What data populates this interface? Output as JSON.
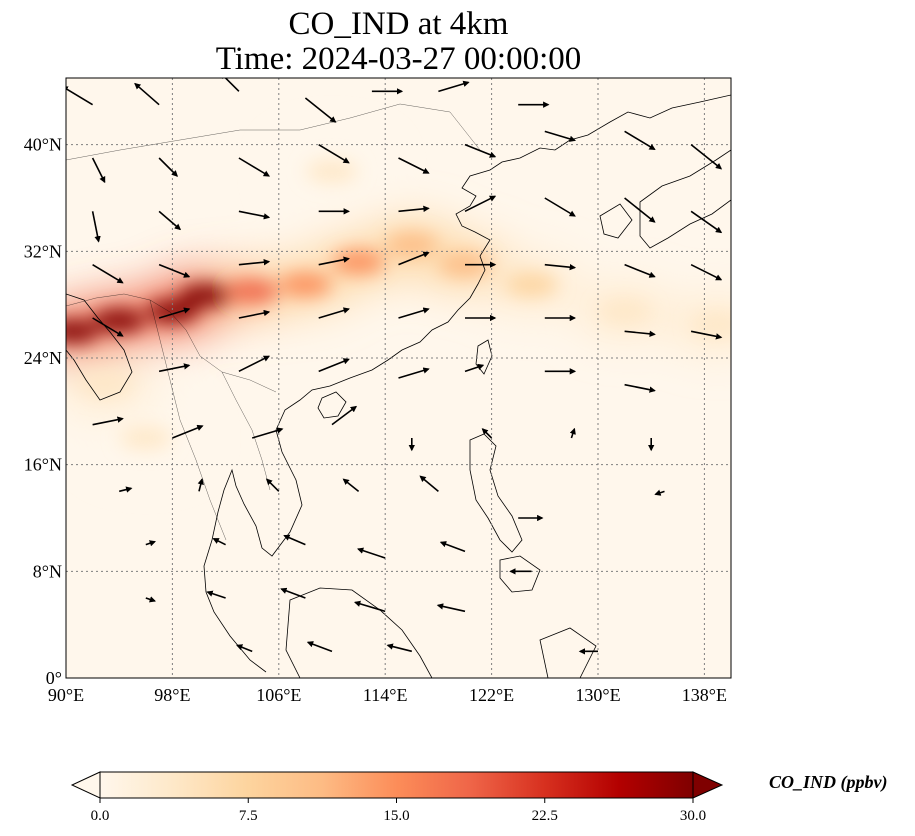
{
  "title": {
    "line1": "CO_IND at 4km",
    "line2": "Time: 2024-03-27 00:00:00"
  },
  "map": {
    "projection": "PlateCarree",
    "lon_range": [
      90,
      140
    ],
    "lat_range": [
      0,
      45
    ],
    "gridlines": "dotted",
    "coastlines": true,
    "country_borders": true
  },
  "axes": {
    "x_ticks": [
      "90°E",
      "98°E",
      "106°E",
      "114°E",
      "122°E",
      "130°E",
      "138°E"
    ],
    "y_ticks": [
      "0°",
      "8°N",
      "16°N",
      "24°N",
      "32°N",
      "40°N"
    ]
  },
  "colorbar": {
    "label": "CO_IND (ppbv)",
    "ticks": [
      "0.0",
      "7.5",
      "15.0",
      "22.5",
      "30.0"
    ],
    "colormap": "OrRd",
    "colors": [
      "#fff7ec",
      "#fee8c8",
      "#fdd49e",
      "#fdbb84",
      "#fc8d59",
      "#ef6548",
      "#d7301f",
      "#b30000",
      "#7f0000"
    ],
    "range": [
      0,
      30
    ],
    "extend": "both"
  },
  "chart_data": {
    "type": "heatmap",
    "field": "CO_IND",
    "units": "ppbv",
    "level": "4km",
    "time": "2024-03-27 00:00:00",
    "plumes": [
      {
        "lon": 90.5,
        "lat": 26.0,
        "value": 30
      },
      {
        "lon": 94.0,
        "lat": 26.8,
        "value": 30
      },
      {
        "lon": 98.0,
        "lat": 27.5,
        "value": 29
      },
      {
        "lon": 100.5,
        "lat": 28.7,
        "value": 30
      },
      {
        "lon": 104.0,
        "lat": 29.0,
        "value": 18
      },
      {
        "lon": 108.0,
        "lat": 29.5,
        "value": 15
      },
      {
        "lon": 112.0,
        "lat": 31.2,
        "value": 14
      },
      {
        "lon": 116.0,
        "lat": 32.5,
        "value": 13
      },
      {
        "lon": 120.0,
        "lat": 31.0,
        "value": 12
      },
      {
        "lon": 125.0,
        "lat": 29.5,
        "value": 7
      },
      {
        "lon": 132.0,
        "lat": 27.5,
        "value": 5
      },
      {
        "lon": 139.0,
        "lat": 26.5,
        "value": 5
      },
      {
        "lon": 93.0,
        "lat": 22.0,
        "value": 5
      },
      {
        "lon": 110.0,
        "lat": 38.0,
        "value": 3
      },
      {
        "lon": 96.0,
        "lat": 18.0,
        "value": 2.5
      }
    ],
    "wind_vectors": [
      {
        "lon": 92,
        "lat": 43,
        "u": -1.0,
        "v": 0.6
      },
      {
        "lon": 97,
        "lat": 43,
        "u": -0.8,
        "v": 0.7
      },
      {
        "lon": 103,
        "lat": 44,
        "u": -0.6,
        "v": 0.6
      },
      {
        "lon": 108,
        "lat": 43.5,
        "u": 1.0,
        "v": -0.8
      },
      {
        "lon": 113,
        "lat": 44,
        "u": 1.0,
        "v": 0.0
      },
      {
        "lon": 118,
        "lat": 44,
        "u": 1.0,
        "v": 0.3
      },
      {
        "lon": 124,
        "lat": 43,
        "u": 1.0,
        "v": 0.0
      },
      {
        "lon": 92,
        "lat": 39,
        "u": 0.4,
        "v": -0.8
      },
      {
        "lon": 97,
        "lat": 39,
        "u": 0.6,
        "v": -0.6
      },
      {
        "lon": 103,
        "lat": 39,
        "u": 1.0,
        "v": -0.6
      },
      {
        "lon": 109,
        "lat": 40,
        "u": 1.0,
        "v": -0.6
      },
      {
        "lon": 115,
        "lat": 39,
        "u": 1.0,
        "v": -0.5
      },
      {
        "lon": 120,
        "lat": 40,
        "u": 1.0,
        "v": -0.4
      },
      {
        "lon": 126,
        "lat": 41,
        "u": 1.0,
        "v": -0.3
      },
      {
        "lon": 132,
        "lat": 41,
        "u": 1.0,
        "v": -0.6
      },
      {
        "lon": 137,
        "lat": 40,
        "u": 1.0,
        "v": -0.8
      },
      {
        "lon": 92,
        "lat": 35,
        "u": 0.2,
        "v": -1.0
      },
      {
        "lon": 97,
        "lat": 35,
        "u": 0.7,
        "v": -0.6
      },
      {
        "lon": 103,
        "lat": 35,
        "u": 1.0,
        "v": -0.2
      },
      {
        "lon": 109,
        "lat": 35,
        "u": 1.0,
        "v": 0.0
      },
      {
        "lon": 115,
        "lat": 35,
        "u": 1.0,
        "v": 0.1
      },
      {
        "lon": 120,
        "lat": 35,
        "u": 1.0,
        "v": 0.5
      },
      {
        "lon": 126,
        "lat": 36,
        "u": 1.0,
        "v": -0.6
      },
      {
        "lon": 132,
        "lat": 36,
        "u": 1.0,
        "v": -0.8
      },
      {
        "lon": 137,
        "lat": 35,
        "u": 1.0,
        "v": -0.7
      },
      {
        "lon": 92,
        "lat": 31,
        "u": 1.0,
        "v": -0.6
      },
      {
        "lon": 97,
        "lat": 31,
        "u": 1.0,
        "v": -0.4
      },
      {
        "lon": 103,
        "lat": 31,
        "u": 1.0,
        "v": 0.1
      },
      {
        "lon": 109,
        "lat": 31,
        "u": 1.0,
        "v": 0.2
      },
      {
        "lon": 115,
        "lat": 31,
        "u": 1.0,
        "v": 0.4
      },
      {
        "lon": 120,
        "lat": 31,
        "u": 1.0,
        "v": 0.0
      },
      {
        "lon": 126,
        "lat": 31,
        "u": 1.0,
        "v": -0.1
      },
      {
        "lon": 132,
        "lat": 31,
        "u": 1.0,
        "v": -0.4
      },
      {
        "lon": 137,
        "lat": 31,
        "u": 1.0,
        "v": -0.5
      },
      {
        "lon": 92,
        "lat": 27,
        "u": 1.0,
        "v": -0.6
      },
      {
        "lon": 97,
        "lat": 27,
        "u": 1.0,
        "v": 0.3
      },
      {
        "lon": 103,
        "lat": 27,
        "u": 1.0,
        "v": 0.2
      },
      {
        "lon": 109,
        "lat": 27,
        "u": 1.0,
        "v": 0.3
      },
      {
        "lon": 115,
        "lat": 27,
        "u": 1.0,
        "v": 0.3
      },
      {
        "lon": 120,
        "lat": 27,
        "u": 1.0,
        "v": 0.0
      },
      {
        "lon": 126,
        "lat": 27,
        "u": 1.0,
        "v": 0.0
      },
      {
        "lon": 132,
        "lat": 26,
        "u": 1.0,
        "v": -0.1
      },
      {
        "lon": 137,
        "lat": 26,
        "u": 1.0,
        "v": -0.2
      },
      {
        "lon": 97,
        "lat": 23,
        "u": 1.0,
        "v": 0.2
      },
      {
        "lon": 103,
        "lat": 23,
        "u": 1.0,
        "v": 0.5
      },
      {
        "lon": 109,
        "lat": 23,
        "u": 1.0,
        "v": 0.4
      },
      {
        "lon": 115,
        "lat": 22.5,
        "u": 1.0,
        "v": 0.3
      },
      {
        "lon": 120,
        "lat": 23,
        "u": 0.6,
        "v": 0.2
      },
      {
        "lon": 126,
        "lat": 23,
        "u": 1.0,
        "v": 0.0
      },
      {
        "lon": 132,
        "lat": 22,
        "u": 1.0,
        "v": -0.2
      },
      {
        "lon": 92,
        "lat": 19,
        "u": 1.0,
        "v": 0.2
      },
      {
        "lon": 98,
        "lat": 18,
        "u": 1.0,
        "v": 0.4
      },
      {
        "lon": 104,
        "lat": 18,
        "u": 1.0,
        "v": 0.3
      },
      {
        "lon": 110,
        "lat": 19,
        "u": 0.8,
        "v": 0.6
      },
      {
        "lon": 116,
        "lat": 18,
        "u": 0.0,
        "v": -0.4
      },
      {
        "lon": 122,
        "lat": 18,
        "u": -0.3,
        "v": 0.3
      },
      {
        "lon": 128,
        "lat": 18,
        "u": 0.1,
        "v": 0.3
      },
      {
        "lon": 134,
        "lat": 18,
        "u": 0.0,
        "v": -0.4
      },
      {
        "lon": 94,
        "lat": 14,
        "u": 0.4,
        "v": 0.1
      },
      {
        "lon": 100,
        "lat": 14,
        "u": 0.1,
        "v": 0.4
      },
      {
        "lon": 106,
        "lat": 14,
        "u": -0.4,
        "v": 0.4
      },
      {
        "lon": 112,
        "lat": 14,
        "u": -0.5,
        "v": 0.4
      },
      {
        "lon": 118,
        "lat": 14,
        "u": -0.6,
        "v": 0.5
      },
      {
        "lon": 124,
        "lat": 12,
        "u": 0.8,
        "v": 0.0
      },
      {
        "lon": 135,
        "lat": 14,
        "u": -0.3,
        "v": -0.1
      },
      {
        "lon": 96,
        "lat": 10,
        "u": 0.3,
        "v": 0.1
      },
      {
        "lon": 102,
        "lat": 10,
        "u": -0.4,
        "v": 0.2
      },
      {
        "lon": 108,
        "lat": 10,
        "u": -0.7,
        "v": 0.3
      },
      {
        "lon": 114,
        "lat": 9,
        "u": -0.9,
        "v": 0.3
      },
      {
        "lon": 120,
        "lat": 9.5,
        "u": -0.8,
        "v": 0.3
      },
      {
        "lon": 125,
        "lat": 8,
        "u": -0.7,
        "v": 0.0
      },
      {
        "lon": 96,
        "lat": 6,
        "u": 0.3,
        "v": -0.1
      },
      {
        "lon": 102,
        "lat": 6,
        "u": -0.6,
        "v": 0.2
      },
      {
        "lon": 108,
        "lat": 6,
        "u": -0.8,
        "v": 0.3
      },
      {
        "lon": 114,
        "lat": 5,
        "u": -1.0,
        "v": 0.3
      },
      {
        "lon": 120,
        "lat": 5,
        "u": -0.9,
        "v": 0.2
      },
      {
        "lon": 104,
        "lat": 2,
        "u": -0.5,
        "v": 0.2
      },
      {
        "lon": 110,
        "lat": 2,
        "u": -0.8,
        "v": 0.3
      },
      {
        "lon": 116,
        "lat": 2,
        "u": -0.8,
        "v": 0.2
      },
      {
        "lon": 130,
        "lat": 2,
        "u": -0.6,
        "v": 0.0
      }
    ]
  }
}
